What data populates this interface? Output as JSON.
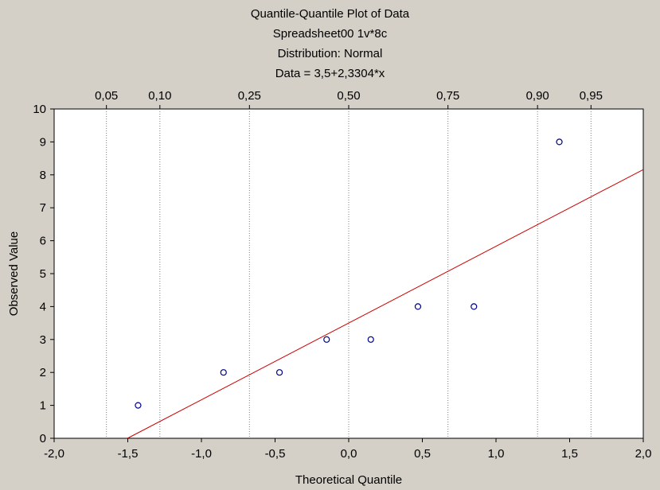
{
  "chart_data": {
    "type": "scatter",
    "title": "Quantile-Quantile Plot of Data",
    "subtitle_lines": [
      "Spreadsheet00 1v*8c",
      "Distribution: Normal",
      "Data = 3,5+2,3304*x"
    ],
    "xlabel": "Theoretical Quantile",
    "ylabel": "Observed Value",
    "xlim": [
      -2.0,
      2.0
    ],
    "ylim": [
      0,
      10
    ],
    "x_ticks": [
      -2.0,
      -1.5,
      -1.0,
      -0.5,
      0.0,
      0.5,
      1.0,
      1.5,
      2.0
    ],
    "x_tick_labels": [
      "-2,0",
      "-1,5",
      "-1,0",
      "-0,5",
      "0,0",
      "0,5",
      "1,0",
      "1,5",
      "2,0"
    ],
    "y_ticks": [
      0,
      1,
      2,
      3,
      4,
      5,
      6,
      7,
      8,
      9,
      10
    ],
    "y_tick_labels": [
      "0",
      "1",
      "2",
      "3",
      "4",
      "5",
      "6",
      "7",
      "8",
      "9",
      "10"
    ],
    "probability_ticks": [
      {
        "label": "0,05",
        "z": -1.645
      },
      {
        "label": "0,10",
        "z": -1.282
      },
      {
        "label": "0,25",
        "z": -0.674
      },
      {
        "label": "0,50",
        "z": 0.0
      },
      {
        "label": "0,75",
        "z": 0.674
      },
      {
        "label": "0,90",
        "z": 1.282
      },
      {
        "label": "0,95",
        "z": 1.645
      }
    ],
    "points": [
      {
        "x": -1.43,
        "y": 1
      },
      {
        "x": -0.85,
        "y": 2
      },
      {
        "x": -0.47,
        "y": 2
      },
      {
        "x": -0.15,
        "y": 3
      },
      {
        "x": 0.15,
        "y": 3
      },
      {
        "x": 0.47,
        "y": 4
      },
      {
        "x": 0.85,
        "y": 4
      },
      {
        "x": 1.43,
        "y": 9
      }
    ],
    "fit_line": {
      "intercept": 3.5,
      "slope": 2.3304
    },
    "grid": "vertical dotted at probability ticks",
    "colors": {
      "background": "#d4d0c8",
      "plot_background": "#ffffff",
      "points": "#00008b",
      "fit_line": "#cc0000",
      "grid": "#808080"
    }
  }
}
